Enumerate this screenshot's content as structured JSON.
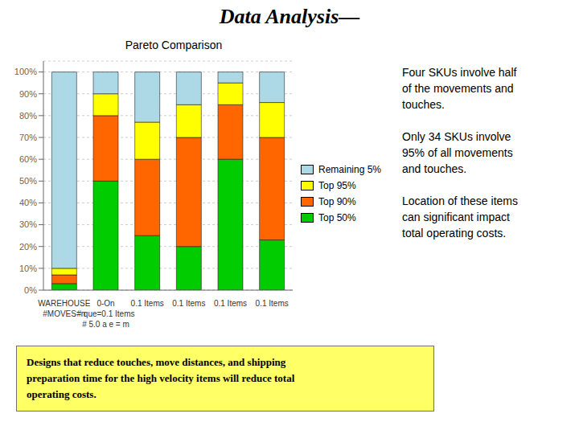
{
  "chart_data": {
    "type": "bar",
    "stacked": true,
    "title": "Data Analysis—",
    "subtitle": "Pareto Comparison",
    "categories": [
      "WAREHOUSE\n#MOVES=n",
      "0-On\n# que=0.1 Items\n# 5.0 a e = m",
      "0.1 Items",
      "0.1 Items",
      "0.1 Items",
      "0.1 Items"
    ],
    "series": [
      {
        "name": "Top 50%",
        "color": "#00cc00",
        "values": [
          3,
          50,
          25,
          20,
          60,
          23
        ]
      },
      {
        "name": "Top 90%",
        "color": "#ff6600",
        "values": [
          4,
          30,
          35,
          50,
          25,
          47
        ]
      },
      {
        "name": "Top 95%",
        "color": "#ffff00",
        "values": [
          3,
          10,
          17,
          15,
          10,
          16
        ]
      },
      {
        "name": "Remaining 5%",
        "color": "#add8e6",
        "values": [
          90,
          10,
          23,
          15,
          5,
          14
        ]
      }
    ],
    "ylim": [
      0,
      105
    ],
    "yticks": [
      {
        "value": 0,
        "label": "0%"
      },
      {
        "value": 10,
        "label": "10%"
      },
      {
        "value": 20,
        "label": "20%"
      },
      {
        "value": 30,
        "label": "30%"
      },
      {
        "value": 40,
        "label": "40%"
      },
      {
        "value": 50,
        "label": "50%"
      },
      {
        "value": 60,
        "label": "60%"
      },
      {
        "value": 70,
        "label": "70%"
      },
      {
        "value": 80,
        "label": "80%"
      },
      {
        "value": 90,
        "label": "90%"
      },
      {
        "value": 100,
        "label": "100%"
      }
    ],
    "grid": true,
    "legend": "right",
    "annotations": [
      "Four SKUs involve half\nof the movements and\ntouches.",
      "Only 34 SKUs involve\n95% of all movements\nand touches.",
      "Location of these items\ncan significant impact\ntotal operating costs.",
      "Designs that reduce touches, move distances, and shipping\npreparation time for the high velocity items will reduce total\noperating costs."
    ]
  }
}
